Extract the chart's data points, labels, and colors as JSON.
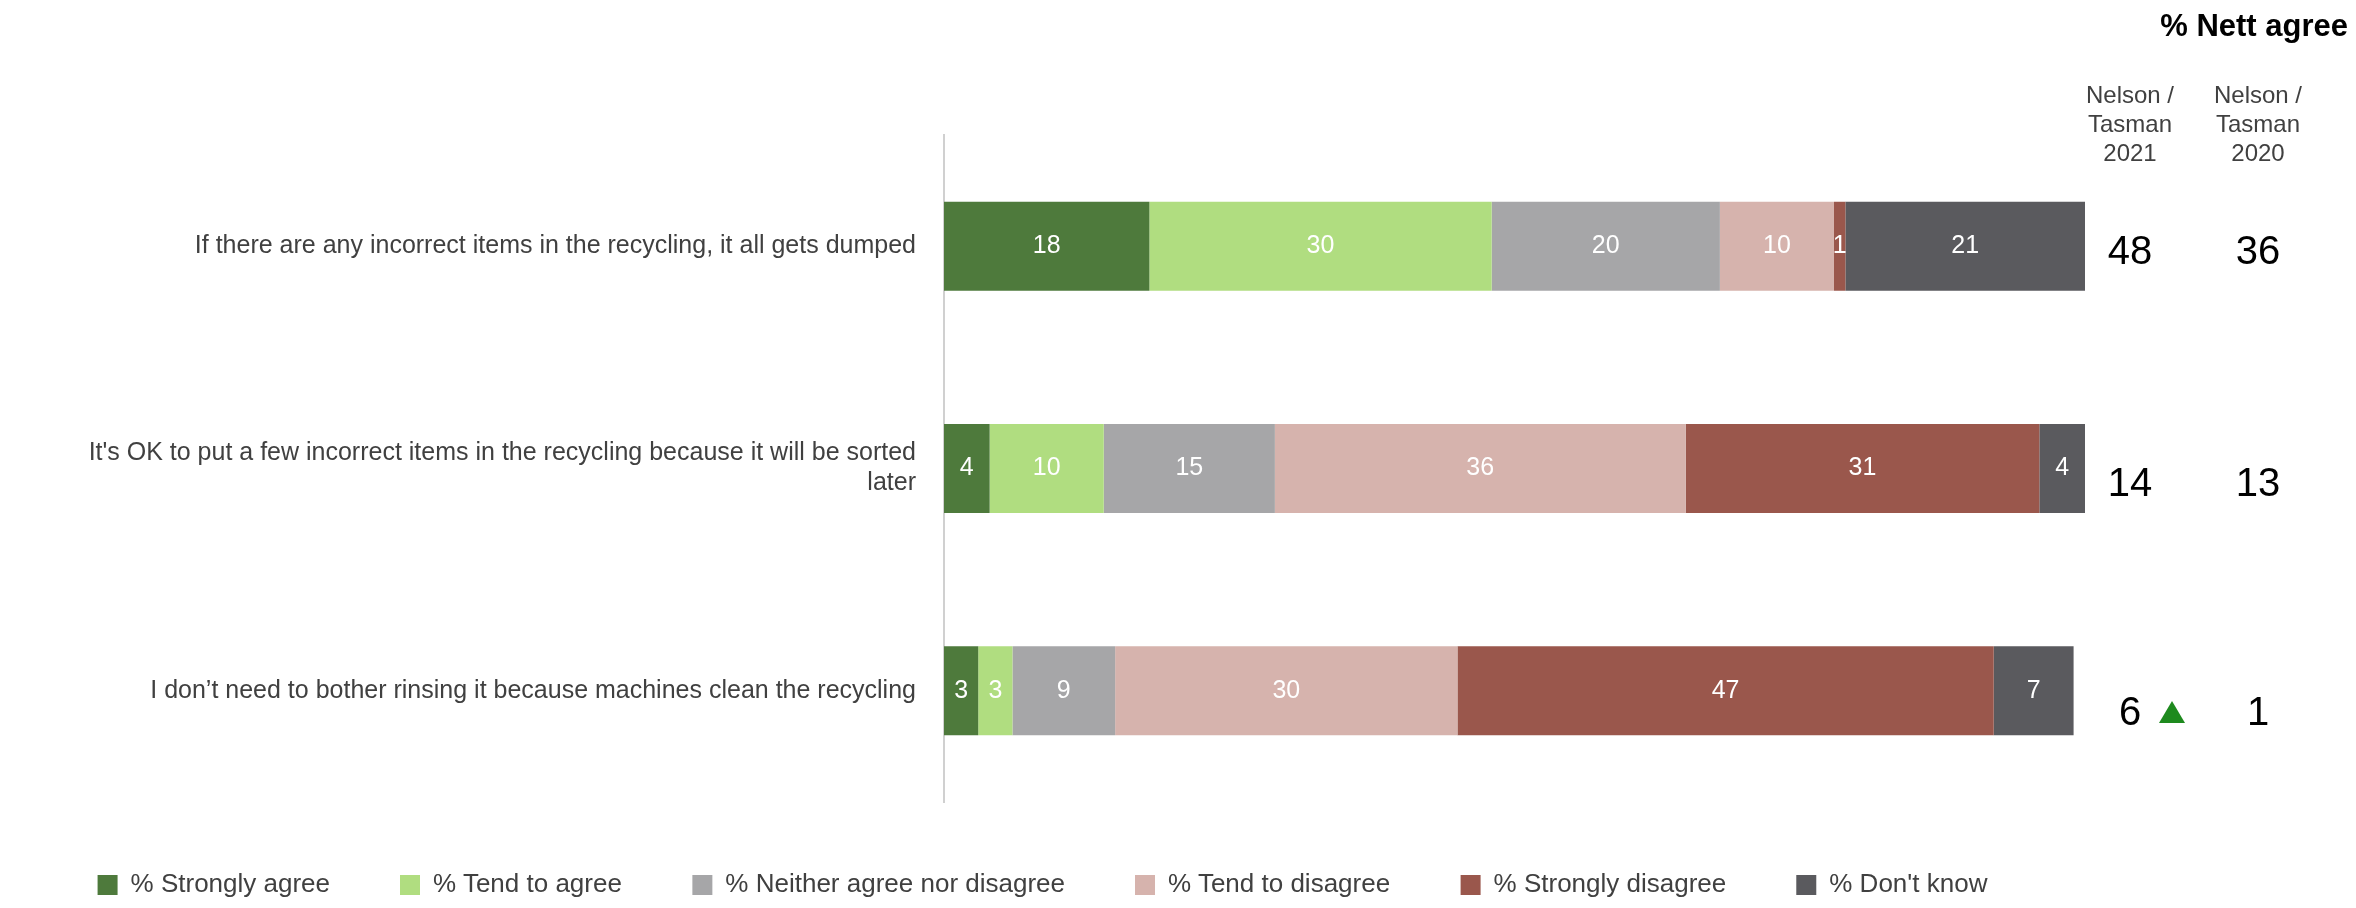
{
  "chart_data": {
    "type": "bar",
    "orientation": "horizontal",
    "stacked": true,
    "data_labels": true,
    "legend": "bottom",
    "grid": false,
    "tick_labels": "y",
    "categories": [
      "If there are any incorrect items in the recycling, it all gets dumped",
      "It's OK to put a few incorrect items in the recycling because it will be sorted later",
      "I don’t need to bother rinsing it because machines clean the recycling"
    ],
    "xlim": [
      0,
      100
    ],
    "series": [
      {
        "name": "% Strongly agree",
        "color": "#4e7a3c",
        "values": [
          18,
          4,
          3
        ]
      },
      {
        "name": "% Tend to agree",
        "color": "#b0dd80",
        "values": [
          30,
          10,
          3
        ]
      },
      {
        "name": "% Neither agree nor disagree",
        "color": "#a6a6a8",
        "values": [
          20,
          15,
          9
        ]
      },
      {
        "name": "% Tend to disagree",
        "color": "#d6b3ad",
        "values": [
          10,
          36,
          30
        ]
      },
      {
        "name": "% Strongly disagree",
        "color": "#9a574c",
        "values": [
          1,
          31,
          47
        ]
      },
      {
        "name": "% Don't know",
        "color": "#5a5a5e",
        "values": [
          21,
          4,
          7
        ]
      }
    ],
    "annotations": [
      "% Nett agree",
      "Nelson / Tasman 2021",
      "Nelson / Tasman 2020",
      "48",
      "36",
      "14",
      "13",
      "6",
      "1"
    ]
  }
}
